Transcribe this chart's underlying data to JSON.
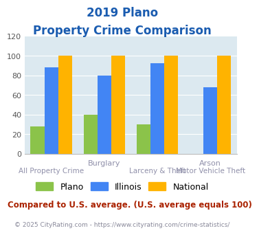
{
  "title_line1": "2019 Plano",
  "title_line2": "Property Crime Comparison",
  "top_labels": [
    "",
    "Burglary",
    "",
    "Arson"
  ],
  "bottom_labels": [
    "All Property Crime",
    "",
    "Larceny & Theft",
    "Motor Vehicle Theft"
  ],
  "plano": [
    28,
    40,
    30,
    0
  ],
  "illinois": [
    88,
    80,
    92,
    68
  ],
  "national": [
    100,
    100,
    100,
    100
  ],
  "ylim": [
    0,
    120
  ],
  "yticks": [
    0,
    20,
    40,
    60,
    80,
    100,
    120
  ],
  "color_plano": "#8bc34a",
  "color_illinois": "#4285f4",
  "color_national": "#ffb300",
  "bg_color": "#dce9f0",
  "title_color": "#1a5cb0",
  "legend_labels": [
    "Plano",
    "Illinois",
    "National"
  ],
  "note_text": "Compared to U.S. average. (U.S. average equals 100)",
  "footer_text": "© 2025 CityRating.com - https://www.cityrating.com/crime-statistics/",
  "note_color": "#aa2200",
  "footer_color": "#888899",
  "label_color": "#9090aa",
  "bar_width": 0.26
}
